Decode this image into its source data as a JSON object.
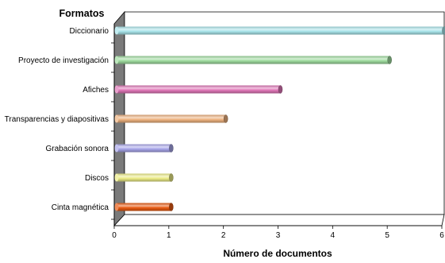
{
  "chart_data": {
    "type": "bar",
    "orientation": "horizontal",
    "style": "3d-cylinder",
    "title": "",
    "ylabel": "Formatos",
    "xlabel": "Número de documentos",
    "xlim": [
      0,
      6
    ],
    "xticks": [
      "0",
      "1",
      "2",
      "3",
      "4",
      "5",
      "6"
    ],
    "grid": false,
    "legend": "none",
    "categories": [
      "Diccionario",
      "Proyecto de investigación",
      "Afiches",
      "Transparencias y diapositivas",
      "Grabación sonora",
      "Discos",
      "Cinta magnética"
    ],
    "values": [
      6,
      5,
      3,
      2,
      1,
      1,
      1
    ],
    "colors": [
      "#a8e4ea",
      "#9fdc9f",
      "#e077b8",
      "#eeb27f",
      "#a8a6ea",
      "#ecec86",
      "#e85a12"
    ]
  }
}
